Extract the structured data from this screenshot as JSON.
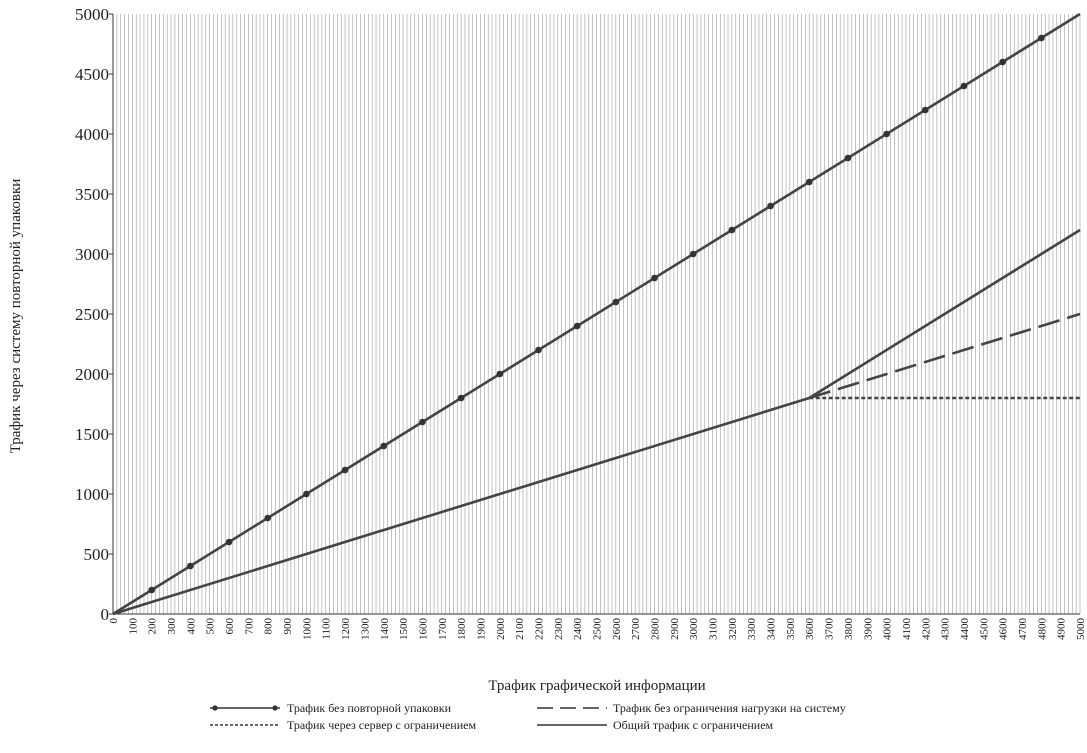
{
  "chart_data": {
    "type": "line",
    "title": "",
    "xlabel": "Трафик графической информации",
    "ylabel": "Трафик через систему повторной упаковки",
    "xlim": [
      0,
      5000
    ],
    "ylim": [
      0,
      5000
    ],
    "x_ticks": [
      0,
      100,
      200,
      300,
      400,
      500,
      600,
      700,
      800,
      900,
      1000,
      1100,
      1200,
      1300,
      1400,
      1500,
      1600,
      1700,
      1800,
      1900,
      2000,
      2100,
      2200,
      2300,
      2400,
      2500,
      2600,
      2700,
      2800,
      2900,
      3000,
      3100,
      3200,
      3300,
      3400,
      3500,
      3600,
      3700,
      3800,
      3900,
      4000,
      4100,
      4200,
      4300,
      4400,
      4500,
      4600,
      4700,
      4800,
      4900,
      5000
    ],
    "y_ticks": [
      0,
      500,
      1000,
      1500,
      2000,
      2500,
      3000,
      3500,
      4000,
      4500,
      5000
    ],
    "x_minor_grid_step": 20,
    "grid": true,
    "legend_position": "bottom",
    "series": [
      {
        "name": "Трафик без повторной упаковки",
        "style": "solid-markers",
        "color": "#444444",
        "x": [
          0,
          5000
        ],
        "y": [
          0,
          5000
        ],
        "marker_x": [
          200,
          400,
          600,
          800,
          1000,
          1200,
          1400,
          1600,
          1800,
          2000,
          2200,
          2400,
          2600,
          2800,
          3000,
          3200,
          3400,
          3600,
          3800,
          4000,
          4200,
          4400,
          4600,
          4800
        ],
        "marker_y": [
          200,
          400,
          600,
          800,
          1000,
          1200,
          1400,
          1600,
          1800,
          2000,
          2200,
          2400,
          2600,
          2800,
          3000,
          3200,
          3400,
          3600,
          3800,
          4000,
          4200,
          4400,
          4600,
          4800
        ]
      },
      {
        "name": "Трафик без ограничения нагрузки на систему",
        "style": "longdash",
        "color": "#444444",
        "x": [
          3600,
          5000
        ],
        "y": [
          1800,
          2500
        ]
      },
      {
        "name": "Трафик через сервер с ограничением",
        "style": "dotted",
        "color": "#444444",
        "x": [
          3600,
          5000
        ],
        "y": [
          1800,
          1800
        ]
      },
      {
        "name": "Общий трафик с ограничением",
        "style": "solid",
        "color": "#444444",
        "x": [
          0,
          3600,
          5000
        ],
        "y": [
          0,
          1800,
          3200
        ]
      }
    ]
  }
}
